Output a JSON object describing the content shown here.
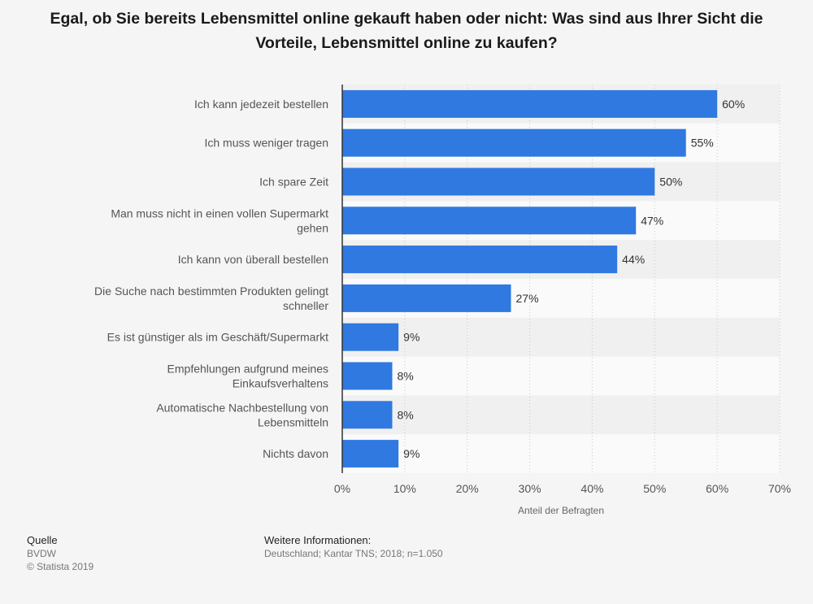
{
  "chart_data": {
    "type": "bar",
    "orientation": "horizontal",
    "title": "Egal, ob Sie bereits Lebensmittel online gekauft haben oder nicht: Was sind aus Ihrer Sicht die Vorteile, Lebensmittel online zu kaufen?",
    "categories": [
      [
        "Ich kann jedezeit bestellen"
      ],
      [
        "Ich muss weniger tragen"
      ],
      [
        "Ich spare Zeit"
      ],
      [
        "Man muss nicht in einen vollen Supermarkt",
        "gehen"
      ],
      [
        "Ich kann von überall bestellen"
      ],
      [
        "Die Suche nach bestimmten Produkten gelingt",
        "schneller"
      ],
      [
        "Es ist günstiger als im Geschäft/Supermarkt"
      ],
      [
        "Empfehlungen aufgrund meines",
        "Einkaufsverhaltens"
      ],
      [
        "Automatische Nachbestellung von",
        "Lebensmitteln"
      ],
      [
        "Nichts davon"
      ]
    ],
    "values": [
      60,
      55,
      50,
      47,
      44,
      27,
      9,
      8,
      8,
      9
    ],
    "value_labels": [
      "60%",
      "55%",
      "50%",
      "47%",
      "44%",
      "27%",
      "9%",
      "8%",
      "8%",
      "9%"
    ],
    "xlim": [
      0,
      70
    ],
    "xticks": [
      0,
      10,
      20,
      30,
      40,
      50,
      60,
      70
    ],
    "xtick_labels": [
      "0%",
      "10%",
      "20%",
      "30%",
      "40%",
      "50%",
      "60%",
      "70%"
    ],
    "xlabel": "Anteil der Befragten",
    "ylabel": "",
    "grid": true,
    "bar_color": "#2f79e0"
  },
  "footer": {
    "source_heading": "Quelle",
    "source_lines": [
      "BVDW",
      "© Statista 2019"
    ],
    "info_heading": "Weitere Informationen:",
    "info_lines": [
      "Deutschland; Kantar TNS; 2018; n=1.050"
    ]
  }
}
